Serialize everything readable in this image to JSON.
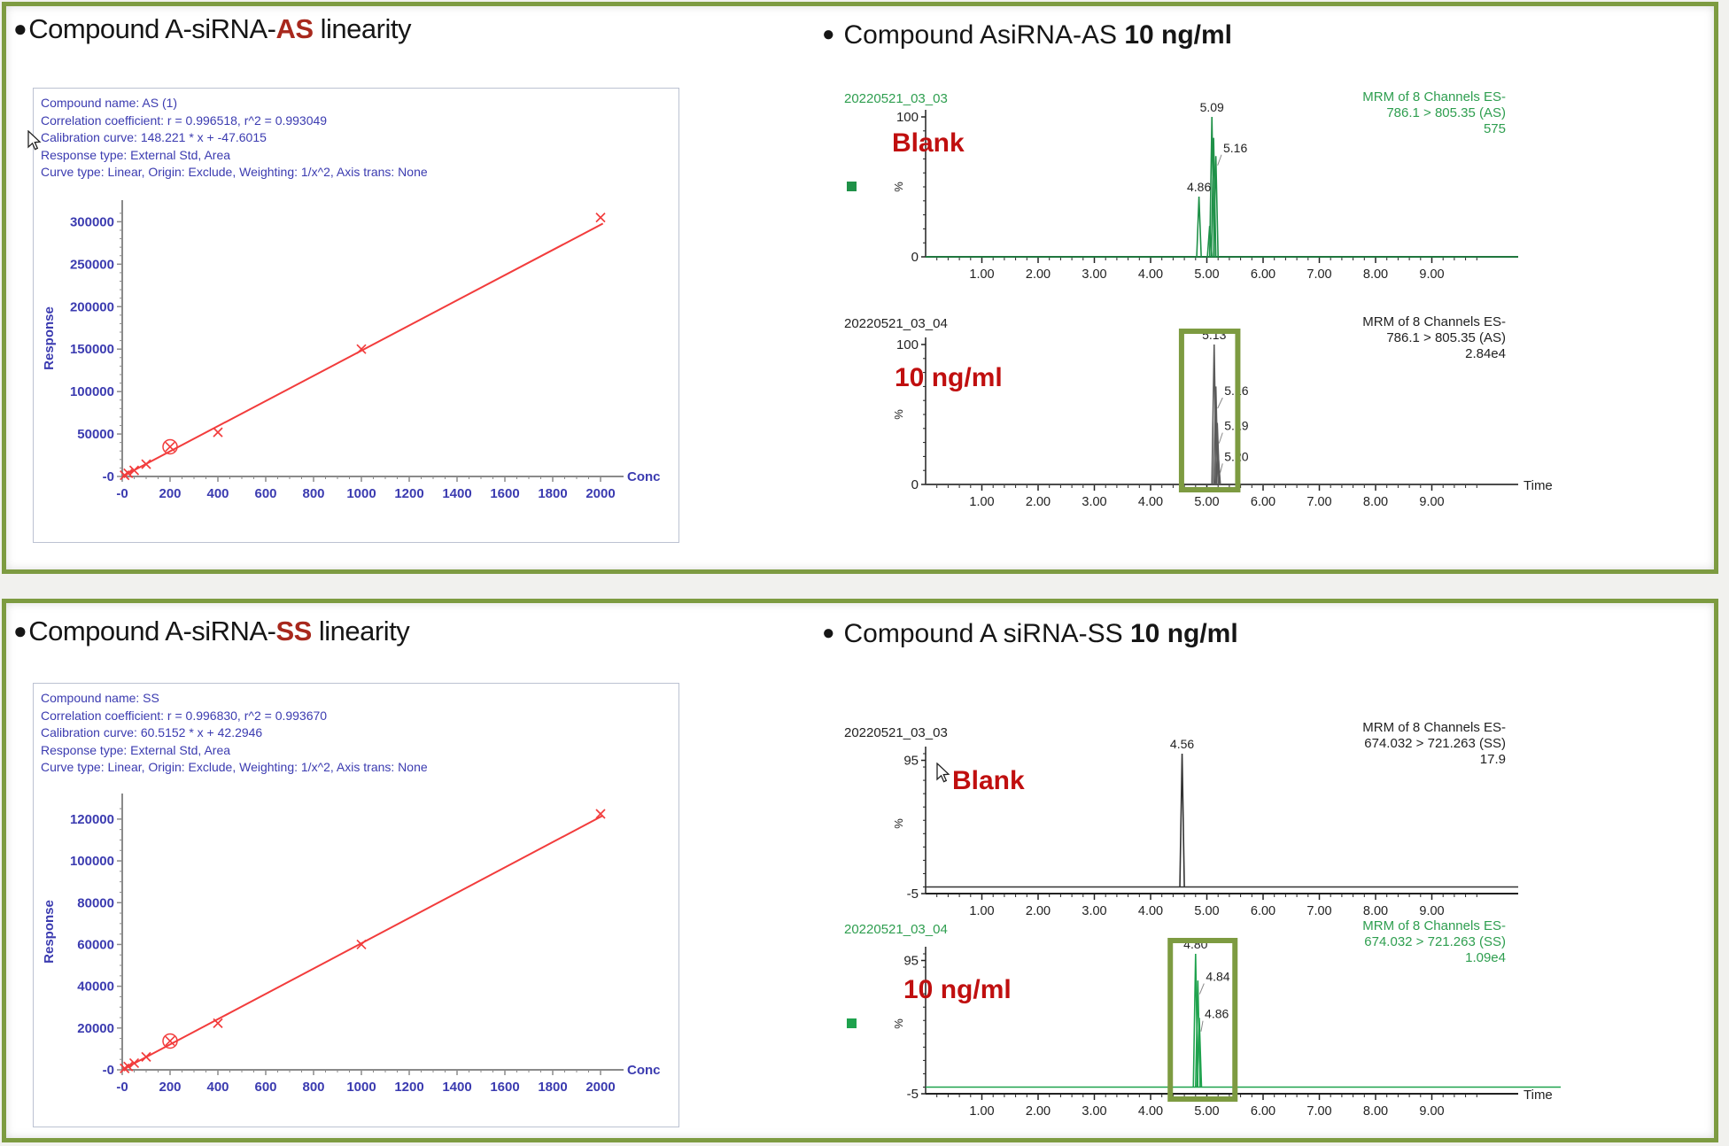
{
  "page": {
    "background": "#f1f1ee",
    "panel_border": "#7d9b41",
    "annotation_color": "#c00f0f"
  },
  "panels": [
    {
      "title": {
        "bullet": "●",
        "prefix": "Compound A-siRNA-",
        "highlight": "AS",
        "suffix": " linearity",
        "highlight_color": "#a8281d"
      },
      "right_title": {
        "bullet": "●",
        "text": "Compound AsiRNA-AS ",
        "bold": "10 ng/ml"
      },
      "calibration": {
        "info_lines": [
          "Compound name: AS (1)",
          "Correlation coefficient: r = 0.996518, r^2 = 0.993049",
          "Calibration curve: 148.221 * x + -47.6015",
          "Response type: External Std, Area",
          "Curve type: Linear, Origin: Exclude, Weighting: 1/x^2, Axis trans: None"
        ]
      },
      "chromatograms": [
        {
          "run_id": "20220521_03_03",
          "text_color": "#2e9e4f",
          "header_lines": [
            "MRM of 8 Channels ES-",
            "786.1 > 805.35 (AS)",
            "575"
          ],
          "annotation": "Blank"
        },
        {
          "run_id": "20220521_03_04",
          "text_color": "#222222",
          "header_lines": [
            "MRM of 8 Channels ES-",
            "786.1 > 805.35 (AS)",
            "2.84e4"
          ],
          "annotation": "10 ng/ml"
        }
      ]
    },
    {
      "title": {
        "bullet": "●",
        "prefix": "Compound A-siRNA-",
        "highlight": "SS",
        "suffix": " linearity",
        "highlight_color": "#a8281d"
      },
      "right_title": {
        "bullet": "●",
        "text": "Compound A siRNA-SS ",
        "bold": "10 ng/ml"
      },
      "calibration": {
        "info_lines": [
          "Compound name: SS",
          "Correlation coefficient: r = 0.996830, r^2 = 0.993670",
          "Calibration curve: 60.5152 * x + 42.2946",
          "Response type: External Std, Area",
          "Curve type: Linear, Origin: Exclude, Weighting: 1/x^2, Axis trans: None"
        ]
      },
      "chromatograms": [
        {
          "run_id": "20220521_03_03",
          "text_color": "#222222",
          "header_lines": [
            "MRM of 8 Channels ES-",
            "674.032 > 721.263 (SS)",
            "17.9"
          ],
          "annotation": "Blank"
        },
        {
          "run_id": "20220521_03_04",
          "text_color": "#2e9e4f",
          "header_lines": [
            "MRM of 8 Channels ES-",
            "674.032 > 721.263 (SS)",
            "1.09e4"
          ],
          "annotation": "10 ng/ml"
        }
      ]
    }
  ],
  "chart_data": [
    {
      "type": "scatter",
      "title": "AS calibration linearity",
      "xlabel": "Conc",
      "ylabel": "Response",
      "xlim": [
        0,
        2000
      ],
      "ylim": [
        0,
        315000
      ],
      "x_minor": 50,
      "y_minor": 10000,
      "x_ticks": [
        {
          "v": 0,
          "l": "-0"
        },
        {
          "v": 200,
          "l": "200"
        },
        {
          "v": 400,
          "l": "400"
        },
        {
          "v": 600,
          "l": "600"
        },
        {
          "v": 800,
          "l": "800"
        },
        {
          "v": 1000,
          "l": "1000"
        },
        {
          "v": 1200,
          "l": "1200"
        },
        {
          "v": 1400,
          "l": "1400"
        },
        {
          "v": 1600,
          "l": "1600"
        },
        {
          "v": 1800,
          "l": "1800"
        },
        {
          "v": 2000,
          "l": "2000"
        }
      ],
      "y_ticks": [
        {
          "v": 300000,
          "l": "300000"
        },
        {
          "v": 250000,
          "l": "250000"
        },
        {
          "v": 200000,
          "l": "200000"
        },
        {
          "v": 150000,
          "l": "150000"
        },
        {
          "v": 100000,
          "l": "100000"
        },
        {
          "v": 50000,
          "l": "50000"
        },
        {
          "v": 0,
          "l": "-0"
        }
      ],
      "line": {
        "slope": 148.221,
        "intercept": -47.6015
      },
      "points": [
        [
          10,
          1400
        ],
        [
          25,
          3800
        ],
        [
          50,
          7200
        ],
        [
          100,
          14500
        ],
        [
          200,
          35000
        ],
        [
          400,
          52000
        ],
        [
          1000,
          150000
        ],
        [
          2000,
          305000
        ]
      ],
      "circled_index": 4,
      "color": "#f23c3c",
      "axis_color": "#8a8a8a",
      "label_color": "#3b3bb0"
    },
    {
      "type": "line",
      "subtype": "chromatogram",
      "title": "AS blank",
      "ylabel": "%",
      "time_label": "",
      "xlim": [
        0,
        10
      ],
      "ylim": [
        0,
        100
      ],
      "y_ticks": [
        {
          "v": 100,
          "l": "100"
        },
        {
          "v": 0,
          "l": "0"
        }
      ],
      "x_ticks": [
        {
          "v": 1,
          "l": "1.00"
        },
        {
          "v": 2,
          "l": "2.00"
        },
        {
          "v": 3,
          "l": "3.00"
        },
        {
          "v": 4,
          "l": "4.00"
        },
        {
          "v": 5,
          "l": "5.00"
        },
        {
          "v": 6,
          "l": "6.00"
        },
        {
          "v": 7,
          "l": "7.00"
        },
        {
          "v": 8,
          "l": "8.00"
        },
        {
          "v": 9,
          "l": "9.00"
        }
      ],
      "trace_color": "#1f9148",
      "legend_square": true,
      "baseline_full": false,
      "highlight": null,
      "peaks": [
        {
          "t": 4.86,
          "h": 43,
          "label": "4.86",
          "pos": "above"
        },
        {
          "t": 5.05,
          "h": 22
        },
        {
          "t": 5.09,
          "h": 100,
          "label": "5.09",
          "pos": "above"
        },
        {
          "t": 5.12,
          "h": 85
        },
        {
          "t": 5.16,
          "h": 72,
          "label": "5.16",
          "lx": 5.26,
          "ly": 78
        }
      ]
    },
    {
      "type": "line",
      "subtype": "chromatogram",
      "title": "AS 10 ng/ml",
      "ylabel": "%",
      "time_label": "Time",
      "xlim": [
        0,
        10
      ],
      "ylim": [
        0,
        100
      ],
      "y_ticks": [
        {
          "v": 100,
          "l": "100"
        },
        {
          "v": 0,
          "l": "0"
        }
      ],
      "x_ticks": [
        {
          "v": 1,
          "l": "1.00"
        },
        {
          "v": 2,
          "l": "2.00"
        },
        {
          "v": 3,
          "l": "3.00"
        },
        {
          "v": 4,
          "l": "4.00"
        },
        {
          "v": 5,
          "l": "5.00"
        },
        {
          "v": 6,
          "l": "6.00"
        },
        {
          "v": 7,
          "l": "7.00"
        },
        {
          "v": 8,
          "l": "8.00"
        },
        {
          "v": 9,
          "l": "9.00"
        }
      ],
      "trace_color": "#5a5a5a",
      "legend_square": false,
      "baseline_full": false,
      "highlight": [
        4.55,
        5.55
      ],
      "peaks": [
        {
          "t": 5.13,
          "h": 100,
          "label": "5.13",
          "pos": "above"
        },
        {
          "t": 5.16,
          "h": 70,
          "label": "5.16",
          "lx": 5.28,
          "ly": 67
        },
        {
          "t": 5.185,
          "h": 44,
          "label": "5.19",
          "lx": 5.28,
          "ly": 42
        },
        {
          "t": 5.2,
          "h": 22,
          "label": "5.20",
          "lx": 5.28,
          "ly": 20
        }
      ]
    },
    {
      "type": "line",
      "subtype": "chromatogram",
      "title": "SS blank",
      "ylabel": "%",
      "time_label": "",
      "xlim": [
        0,
        10
      ],
      "ylim": [
        -5,
        100
      ],
      "y_ticks": [
        {
          "v": 95,
          "l": "95"
        },
        {
          "v": -5,
          "l": "-5"
        }
      ],
      "x_ticks": [
        {
          "v": 1,
          "l": "1.00"
        },
        {
          "v": 2,
          "l": "2.00"
        },
        {
          "v": 3,
          "l": "3.00"
        },
        {
          "v": 4,
          "l": "4.00"
        },
        {
          "v": 5,
          "l": "5.00"
        },
        {
          "v": 6,
          "l": "6.00"
        },
        {
          "v": 7,
          "l": "7.00"
        },
        {
          "v": 8,
          "l": "8.00"
        },
        {
          "v": 9,
          "l": "9.00"
        }
      ],
      "trace_color": "#333333",
      "legend_square": false,
      "baseline_full": false,
      "highlight": null,
      "peaks": [
        {
          "t": 4.56,
          "h": 100,
          "label": "4.56",
          "pos": "above"
        }
      ]
    },
    {
      "type": "line",
      "subtype": "chromatogram",
      "title": "SS 10 ng/ml",
      "ylabel": "%",
      "time_label": "Time",
      "xlim": [
        0,
        10
      ],
      "ylim": [
        -5,
        100
      ],
      "y_ticks": [
        {
          "v": 95,
          "l": "95"
        },
        {
          "v": -5,
          "l": "-5"
        }
      ],
      "x_ticks": [
        {
          "v": 1,
          "l": "1.00"
        },
        {
          "v": 2,
          "l": "2.00"
        },
        {
          "v": 3,
          "l": "3.00"
        },
        {
          "v": 4,
          "l": "4.00"
        },
        {
          "v": 5,
          "l": "5.00"
        },
        {
          "v": 6,
          "l": "6.00"
        },
        {
          "v": 7,
          "l": "7.00"
        },
        {
          "v": 8,
          "l": "8.00"
        },
        {
          "v": 9,
          "l": "9.00"
        }
      ],
      "trace_color": "#1ea24d",
      "legend_square": true,
      "baseline_full": true,
      "highlight": [
        4.35,
        5.5
      ],
      "peaks": [
        {
          "t": 4.8,
          "h": 100,
          "label": "4.80",
          "pos": "above"
        },
        {
          "t": 4.84,
          "h": 80,
          "label": "4.84",
          "lx": 4.95,
          "ly": 83
        },
        {
          "t": 4.865,
          "h": 52,
          "label": "4.86",
          "lx": 4.93,
          "ly": 55
        }
      ]
    },
    {
      "type": "scatter",
      "title": "SS calibration linearity",
      "xlabel": "Conc",
      "ylabel": "Response",
      "xlim": [
        0,
        2000
      ],
      "ylim": [
        0,
        128000
      ],
      "x_minor": 50,
      "y_minor": 5000,
      "x_ticks": [
        {
          "v": 0,
          "l": "-0"
        },
        {
          "v": 200,
          "l": "200"
        },
        {
          "v": 400,
          "l": "400"
        },
        {
          "v": 600,
          "l": "600"
        },
        {
          "v": 800,
          "l": "800"
        },
        {
          "v": 1000,
          "l": "1000"
        },
        {
          "v": 1200,
          "l": "1200"
        },
        {
          "v": 1400,
          "l": "1400"
        },
        {
          "v": 1600,
          "l": "1600"
        },
        {
          "v": 1800,
          "l": "1800"
        },
        {
          "v": 2000,
          "l": "2000"
        }
      ],
      "y_ticks": [
        {
          "v": 120000,
          "l": "120000"
        },
        {
          "v": 100000,
          "l": "100000"
        },
        {
          "v": 80000,
          "l": "80000"
        },
        {
          "v": 60000,
          "l": "60000"
        },
        {
          "v": 40000,
          "l": "40000"
        },
        {
          "v": 20000,
          "l": "20000"
        },
        {
          "v": 0,
          "l": "-0"
        }
      ],
      "line": {
        "slope": 60.5152,
        "intercept": 42.2946
      },
      "points": [
        [
          10,
          700
        ],
        [
          25,
          1600
        ],
        [
          50,
          3200
        ],
        [
          100,
          6200
        ],
        [
          200,
          13800
        ],
        [
          400,
          22300
        ],
        [
          1000,
          60000
        ],
        [
          2000,
          122500
        ]
      ],
      "circled_index": 4,
      "color": "#f23c3c",
      "axis_color": "#8a8a8a",
      "label_color": "#3b3bb0"
    }
  ]
}
